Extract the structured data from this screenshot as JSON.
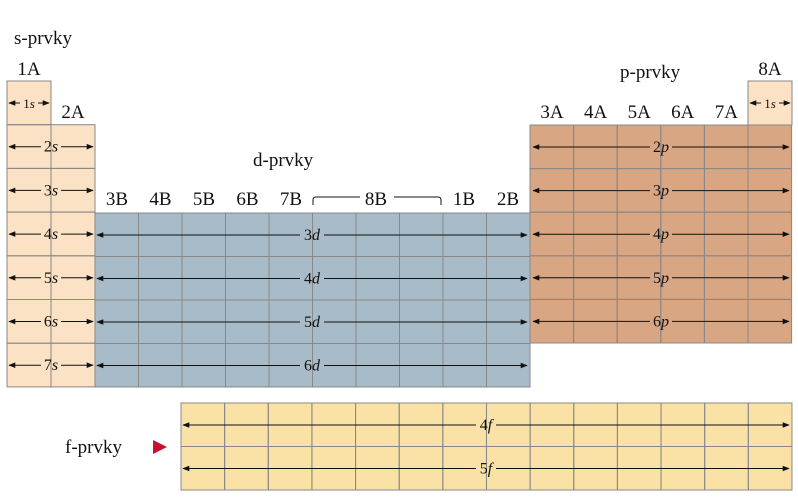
{
  "blocks": {
    "s": {
      "label": "s-prvky",
      "color": "#fbe2c4"
    },
    "p": {
      "label": "p-prvky",
      "color": "#d9a683"
    },
    "d": {
      "label": "d-prvky",
      "color": "#a8bbc8"
    },
    "f": {
      "label": "f-prvky",
      "color": "#fae2a6"
    }
  },
  "group_headers": {
    "g1": "1A",
    "g2": "2A",
    "g8a": "8A",
    "p_groups": [
      "3A",
      "4A",
      "5A",
      "6A",
      "7A"
    ],
    "d_groups": [
      "3B",
      "4B",
      "5B",
      "6B",
      "7B"
    ],
    "g8b": "8B",
    "g1b": "1B",
    "g2b": "2B"
  },
  "orbitals": {
    "s": [
      {
        "n": "1",
        "l": "s"
      },
      {
        "n": "2",
        "l": "s"
      },
      {
        "n": "3",
        "l": "s"
      },
      {
        "n": "4",
        "l": "s"
      },
      {
        "n": "5",
        "l": "s"
      },
      {
        "n": "6",
        "l": "s"
      },
      {
        "n": "7",
        "l": "s"
      }
    ],
    "he": {
      "n": "1",
      "l": "s"
    },
    "p": [
      {
        "n": "2",
        "l": "p"
      },
      {
        "n": "3",
        "l": "p"
      },
      {
        "n": "4",
        "l": "p"
      },
      {
        "n": "5",
        "l": "p"
      },
      {
        "n": "6",
        "l": "p"
      }
    ],
    "d": [
      {
        "n": "3",
        "l": "d"
      },
      {
        "n": "4",
        "l": "d"
      },
      {
        "n": "5",
        "l": "d"
      },
      {
        "n": "6",
        "l": "d"
      }
    ],
    "f": [
      {
        "n": "4",
        "l": "f"
      },
      {
        "n": "5",
        "l": "f"
      }
    ]
  },
  "marker_color": "#c8102e"
}
